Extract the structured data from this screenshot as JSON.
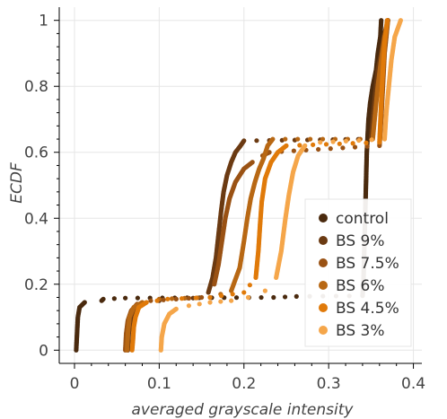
{
  "chart_data": {
    "type": "scatter",
    "title": "",
    "xlabel": "averaged grayscale intensity",
    "ylabel": "ECDF",
    "xlim": [
      -0.018,
      0.41
    ],
    "ylim": [
      -0.04,
      1.04
    ],
    "x_ticks": [
      0,
      0.1,
      0.2,
      0.3,
      0.4
    ],
    "x_tick_labels": [
      "0",
      "0.1",
      "0.2",
      "0.3",
      "0.4"
    ],
    "y_ticks": [
      0,
      0.2,
      0.4,
      0.6,
      0.8,
      1
    ],
    "y_tick_labels": [
      "0",
      "0.2",
      "0.4",
      "0.6",
      "0.8",
      "1"
    ],
    "grid": true,
    "legend_position": "bottom-right",
    "series": [
      {
        "name": "control",
        "color": "#4a2a0e",
        "points": [
          [
            0.002,
            0.0
          ],
          [
            0.003,
            0.05
          ],
          [
            0.004,
            0.1
          ],
          [
            0.006,
            0.13
          ],
          [
            0.01,
            0.14
          ],
          [
            0.012,
            0.145
          ],
          [
            0.032,
            0.15
          ],
          [
            0.034,
            0.155
          ],
          [
            0.06,
            0.158
          ],
          [
            0.235,
            0.16
          ],
          [
            0.262,
            0.163
          ],
          [
            0.34,
            0.165
          ],
          [
            0.341,
            0.2
          ],
          [
            0.343,
            0.4
          ],
          [
            0.344,
            0.5
          ],
          [
            0.345,
            0.6
          ],
          [
            0.347,
            0.7
          ],
          [
            0.349,
            0.75
          ],
          [
            0.352,
            0.8
          ],
          [
            0.356,
            0.85
          ],
          [
            0.358,
            0.9
          ],
          [
            0.361,
            0.95
          ],
          [
            0.362,
            1.0
          ]
        ]
      },
      {
        "name": "BS 9%",
        "color": "#6b3a12",
        "points": [
          [
            0.063,
            0.0
          ],
          [
            0.064,
            0.05
          ],
          [
            0.066,
            0.08
          ],
          [
            0.069,
            0.11
          ],
          [
            0.073,
            0.13
          ],
          [
            0.08,
            0.14
          ],
          [
            0.1,
            0.15
          ],
          [
            0.12,
            0.155
          ],
          [
            0.14,
            0.158
          ],
          [
            0.158,
            0.175
          ],
          [
            0.163,
            0.22
          ],
          [
            0.167,
            0.28
          ],
          [
            0.17,
            0.35
          ],
          [
            0.173,
            0.42
          ],
          [
            0.176,
            0.48
          ],
          [
            0.18,
            0.53
          ],
          [
            0.185,
            0.57
          ],
          [
            0.19,
            0.6
          ],
          [
            0.196,
            0.62
          ],
          [
            0.2,
            0.635
          ],
          [
            0.35,
            0.64
          ],
          [
            0.352,
            0.7
          ],
          [
            0.355,
            0.78
          ],
          [
            0.358,
            0.85
          ],
          [
            0.362,
            0.9
          ],
          [
            0.365,
            0.95
          ],
          [
            0.37,
            1.0
          ]
        ]
      },
      {
        "name": "BS 7.5%",
        "color": "#9a5214",
        "points": [
          [
            0.06,
            0.0
          ],
          [
            0.061,
            0.05
          ],
          [
            0.063,
            0.09
          ],
          [
            0.067,
            0.12
          ],
          [
            0.074,
            0.14
          ],
          [
            0.09,
            0.15
          ],
          [
            0.15,
            0.16
          ],
          [
            0.165,
            0.2
          ],
          [
            0.17,
            0.26
          ],
          [
            0.174,
            0.33
          ],
          [
            0.178,
            0.4
          ],
          [
            0.183,
            0.46
          ],
          [
            0.19,
            0.51
          ],
          [
            0.2,
            0.55
          ],
          [
            0.21,
            0.57
          ],
          [
            0.222,
            0.59
          ],
          [
            0.23,
            0.6
          ],
          [
            0.36,
            0.62
          ],
          [
            0.362,
            0.7
          ],
          [
            0.364,
            0.8
          ],
          [
            0.366,
            0.9
          ],
          [
            0.368,
            0.95
          ],
          [
            0.37,
            1.0
          ]
        ]
      },
      {
        "name": "BS 6%",
        "color": "#b86814",
        "points": [
          [
            0.062,
            0.0
          ],
          [
            0.063,
            0.05
          ],
          [
            0.065,
            0.1
          ],
          [
            0.07,
            0.13
          ],
          [
            0.08,
            0.145
          ],
          [
            0.1,
            0.155
          ],
          [
            0.16,
            0.16
          ],
          [
            0.185,
            0.18
          ],
          [
            0.195,
            0.25
          ],
          [
            0.2,
            0.33
          ],
          [
            0.204,
            0.4
          ],
          [
            0.208,
            0.46
          ],
          [
            0.213,
            0.51
          ],
          [
            0.218,
            0.55
          ],
          [
            0.223,
            0.58
          ],
          [
            0.228,
            0.62
          ],
          [
            0.234,
            0.64
          ],
          [
            0.352,
            0.64
          ],
          [
            0.355,
            0.72
          ],
          [
            0.358,
            0.8
          ],
          [
            0.362,
            0.88
          ],
          [
            0.366,
            0.95
          ],
          [
            0.37,
            1.0
          ]
        ]
      },
      {
        "name": "BS 4.5%",
        "color": "#e07a0a",
        "points": [
          [
            0.068,
            0.0
          ],
          [
            0.069,
            0.03
          ],
          [
            0.07,
            0.07
          ],
          [
            0.072,
            0.1
          ],
          [
            0.076,
            0.13
          ],
          [
            0.085,
            0.145
          ],
          [
            0.11,
            0.155
          ],
          [
            0.16,
            0.16
          ],
          [
            0.2,
            0.175
          ],
          [
            0.214,
            0.22
          ],
          [
            0.217,
            0.3
          ],
          [
            0.219,
            0.38
          ],
          [
            0.221,
            0.45
          ],
          [
            0.225,
            0.52
          ],
          [
            0.232,
            0.57
          ],
          [
            0.24,
            0.6
          ],
          [
            0.25,
            0.62
          ],
          [
            0.36,
            0.63
          ],
          [
            0.362,
            0.75
          ],
          [
            0.364,
            0.85
          ],
          [
            0.366,
            0.93
          ],
          [
            0.369,
            1.0
          ]
        ]
      },
      {
        "name": "BS 3%",
        "color": "#f5a64a",
        "points": [
          [
            0.102,
            0.0
          ],
          [
            0.103,
            0.04
          ],
          [
            0.106,
            0.08
          ],
          [
            0.112,
            0.11
          ],
          [
            0.12,
            0.125
          ],
          [
            0.135,
            0.135
          ],
          [
            0.16,
            0.145
          ],
          [
            0.185,
            0.15
          ],
          [
            0.205,
            0.16
          ],
          [
            0.225,
            0.18
          ],
          [
            0.238,
            0.22
          ],
          [
            0.244,
            0.3
          ],
          [
            0.249,
            0.4
          ],
          [
            0.253,
            0.47
          ],
          [
            0.258,
            0.54
          ],
          [
            0.264,
            0.59
          ],
          [
            0.272,
            0.62
          ],
          [
            0.29,
            0.63
          ],
          [
            0.366,
            0.64
          ],
          [
            0.368,
            0.72
          ],
          [
            0.371,
            0.8
          ],
          [
            0.374,
            0.88
          ],
          [
            0.378,
            0.95
          ],
          [
            0.385,
            1.0
          ]
        ]
      }
    ]
  }
}
